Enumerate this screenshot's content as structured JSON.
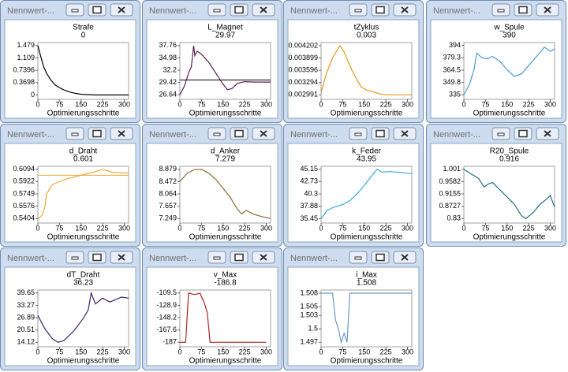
{
  "windows": [
    {
      "title": "Nennwert-...",
      "chart": {
        "type": "line",
        "title": "Strafe",
        "value": 0,
        "xlabel": "Optimierungsschritte",
        "xlim": [
          0,
          315
        ],
        "xticks": [
          0,
          75,
          150,
          225,
          300
        ],
        "ylim": [
          -0.13,
          1.57
        ],
        "yticks": [
          1.479,
          1.109,
          0.7396,
          0.3698,
          0
        ],
        "color": "#000000",
        "x": [
          0,
          10,
          20,
          30,
          45,
          60,
          75,
          90,
          110,
          130,
          150,
          175,
          200,
          250,
          315
        ],
        "values": [
          1.479,
          1.15,
          0.85,
          0.65,
          0.45,
          0.3,
          0.22,
          0.15,
          0.09,
          0.05,
          0.02,
          0.01,
          0,
          0,
          0
        ]
      }
    },
    {
      "title": "Nennwert-...",
      "chart": {
        "type": "line",
        "title": "L_Magnet",
        "value": 29.97,
        "xlabel": "Optimierungsschritte",
        "xlim": [
          0,
          315
        ],
        "xticks": [
          0,
          75,
          150,
          225,
          300
        ],
        "ylim": [
          25.6,
          38.45
        ],
        "yticks": [
          37.76,
          34.98,
          32.2,
          29.42,
          26.64
        ],
        "color": "#5c1c4c",
        "value_line": true,
        "value_line_color": "#000000",
        "x": [
          0,
          15,
          30,
          40,
          48,
          52,
          60,
          75,
          100,
          125,
          150,
          165,
          180,
          200,
          225,
          260,
          315
        ],
        "values": [
          26.64,
          28.5,
          31.5,
          33,
          37.76,
          35.5,
          36.5,
          35.8,
          34,
          31.5,
          29,
          27.8,
          28,
          29.2,
          29.6,
          29.5,
          29.5
        ]
      }
    },
    {
      "title": "Nennwert-...",
      "chart": {
        "type": "line",
        "title": "tZyklus",
        "value": 0.003,
        "xlabel": "Optimierungsschritte",
        "xlim": [
          0,
          315
        ],
        "xticks": [
          0,
          75,
          150,
          225,
          300
        ],
        "ylim": [
          0.00288,
          0.00428
        ],
        "yticks": [
          0.004202,
          0.003899,
          0.003596,
          0.003294,
          0.002991
        ],
        "color": "#e09a1c",
        "x": [
          0,
          20,
          40,
          65,
          80,
          100,
          120,
          140,
          160,
          175,
          200,
          225,
          315
        ],
        "values": [
          0.00305,
          0.00355,
          0.0039,
          0.004202,
          0.00405,
          0.0037,
          0.00342,
          0.00318,
          0.0031,
          0.00308,
          0.00302,
          0.002991,
          0.002991
        ]
      }
    },
    {
      "title": "Nennwert-...",
      "chart": {
        "type": "line",
        "title": "w_Spule",
        "value": 390,
        "xlabel": "Optimierungsschritte",
        "xlim": [
          0,
          315
        ],
        "xticks": [
          0,
          75,
          150,
          225,
          300
        ],
        "ylim": [
          329.7,
          397.5
        ],
        "yticks": [
          394,
          379.3,
          364.5,
          349.8,
          335
        ],
        "color": "#4a9ad0",
        "x": [
          0,
          20,
          35,
          45,
          60,
          80,
          100,
          125,
          150,
          175,
          200,
          225,
          250,
          280,
          300,
          315
        ],
        "values": [
          335,
          348,
          365,
          385,
          380,
          378,
          381,
          375,
          365,
          357,
          360,
          370,
          380,
          392,
          387,
          390
        ]
      }
    },
    {
      "title": "Nennwert-...",
      "chart": {
        "type": "line",
        "title": "d_Draht",
        "value": 0.601,
        "xlabel": "Optimierungsschritte",
        "xlim": [
          0,
          315
        ],
        "xticks": [
          0,
          75,
          150,
          225,
          300
        ],
        "ylim": [
          0.5342,
          0.6135
        ],
        "yticks": [
          0.6094,
          0.5922,
          0.5749,
          0.5576,
          0.5404
        ],
        "color": "#f0a634",
        "value_line": true,
        "value_line_color": "#f0a634",
        "x": [
          0,
          15,
          25,
          30,
          50,
          75,
          100,
          150,
          200,
          225,
          260,
          315
        ],
        "values": [
          0.5404,
          0.545,
          0.558,
          0.575,
          0.588,
          0.592,
          0.596,
          0.601,
          0.606,
          0.6094,
          0.605,
          0.604
        ]
      }
    },
    {
      "title": "Nennwert-...",
      "chart": {
        "type": "line",
        "title": "d_Anker",
        "value": 7.279,
        "xlabel": "Optimierungsschritte",
        "xlim": [
          0,
          315
        ],
        "xticks": [
          0,
          75,
          150,
          225,
          300
        ],
        "ylim": [
          7.1,
          8.98
        ],
        "yticks": [
          8.879,
          8.472,
          8.064,
          7.657,
          7.249
        ],
        "color": "#8a6a34",
        "x": [
          0,
          25,
          50,
          75,
          100,
          125,
          150,
          175,
          200,
          215,
          230,
          260,
          290,
          315
        ],
        "values": [
          8.47,
          8.75,
          8.87,
          8.879,
          8.75,
          8.55,
          8.25,
          7.95,
          7.55,
          7.4,
          7.52,
          7.38,
          7.3,
          7.249
        ]
      }
    },
    {
      "title": "Nennwert-...",
      "chart": {
        "type": "line",
        "title": "k_Feder",
        "value": 43.95,
        "xlabel": "Optimierungsschritte",
        "xlim": [
          0,
          315
        ],
        "xticks": [
          0,
          75,
          150,
          225,
          300
        ],
        "ylim": [
          34.58,
          45.73
        ],
        "yticks": [
          45.15,
          42.73,
          40.3,
          37.88,
          35.45
        ],
        "color": "#3aa8e2",
        "x": [
          0,
          20,
          40,
          75,
          100,
          125,
          150,
          175,
          195,
          210,
          240,
          275,
          315
        ],
        "values": [
          35.45,
          37,
          37.6,
          38.2,
          39,
          40.3,
          42,
          43.8,
          45.15,
          44.6,
          44.7,
          44.5,
          44.3
        ]
      }
    },
    {
      "title": "Nennwert-...",
      "chart": {
        "type": "line",
        "title": "R20_Spule",
        "value": 0.916,
        "xlabel": "Optimierungsschritte",
        "xlim": [
          0,
          315
        ],
        "xticks": [
          0,
          75,
          150,
          225,
          300
        ],
        "ylim": [
          0.8146,
          1.0113
        ],
        "yticks": [
          1.001,
          0.9582,
          0.9155,
          0.8727,
          0.83
        ],
        "color": "#1e7080",
        "x": [
          0,
          25,
          50,
          70,
          85,
          100,
          125,
          150,
          175,
          200,
          215,
          240,
          265,
          290,
          300,
          315
        ],
        "values": [
          1.001,
          0.985,
          0.97,
          0.94,
          0.95,
          0.955,
          0.93,
          0.905,
          0.88,
          0.84,
          0.83,
          0.85,
          0.88,
          0.9,
          0.91,
          0.87
        ]
      }
    },
    {
      "title": "Nennwert-...",
      "chart": {
        "type": "line",
        "title": "dT_Draht",
        "value": 36.23,
        "xlabel": "Optimierungsschritte",
        "xlim": [
          0,
          315
        ],
        "xticks": [
          0,
          75,
          150,
          225,
          300
        ],
        "ylim": [
          11.82,
          41.18
        ],
        "yticks": [
          39.65,
          33.27,
          26.89,
          20.51,
          14.12
        ],
        "color": "#3e2070",
        "x": [
          0,
          25,
          50,
          70,
          90,
          125,
          160,
          175,
          185,
          200,
          225,
          250,
          290,
          315
        ],
        "values": [
          28,
          21,
          16,
          14.12,
          15,
          20,
          27,
          31,
          39.65,
          34,
          37,
          35,
          37.5,
          37
        ]
      }
    },
    {
      "title": "Nennwert-...",
      "chart": {
        "type": "line",
        "title": "v_Max",
        "value": -186.8,
        "xlabel": "Optimierungsschritte",
        "xlim": [
          0,
          315
        ],
        "xticks": [
          0,
          75,
          150,
          225,
          300
        ],
        "ylim": [
          -194,
          -104.85
        ],
        "yticks": [
          -109.5,
          -128.9,
          -148.2,
          -167.6,
          -187
        ],
        "color": "#b02222",
        "x": [
          0,
          20,
          30,
          50,
          70,
          85,
          95,
          105,
          200,
          300
        ],
        "values": [
          -187,
          -187,
          -109.5,
          -112,
          -110,
          -125,
          -140,
          -187,
          -187,
          -187
        ]
      }
    },
    {
      "title": "Nennwert-...",
      "chart": {
        "type": "line",
        "title": "i_Max",
        "value": 1.508,
        "xlabel": "Optimierungsschritte",
        "xlim": [
          0,
          315
        ],
        "xticks": [
          0,
          75,
          150,
          225,
          300
        ],
        "ylim": [
          1.496,
          1.5087
        ],
        "yticks": [
          1.508,
          1.505,
          1.503,
          1.5,
          1.497
        ],
        "color": "#6a98c8",
        "x": [
          0,
          40,
          50,
          60,
          70,
          80,
          90,
          100,
          200,
          315
        ],
        "values": [
          1.508,
          1.508,
          1.502,
          1.5,
          1.497,
          1.499,
          1.497,
          1.508,
          1.508,
          1.508
        ]
      }
    }
  ]
}
